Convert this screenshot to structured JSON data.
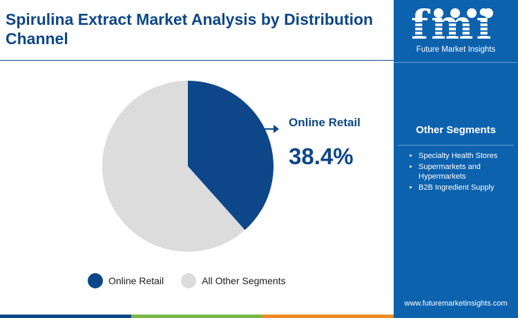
{
  "title": "Spirulina Extract Market Analysis by Distribution Channel",
  "chart_data": {
    "type": "pie",
    "categories": [
      "Online Retail",
      "All Other Segments"
    ],
    "values": [
      38.4,
      61.6
    ],
    "colors": [
      "#0d4789",
      "#dcdcdc"
    ],
    "callout": {
      "label": "Online Retail",
      "value": "38.4%"
    },
    "legend": {
      "placement": "bottom",
      "entries": [
        "Online Retail",
        "All Other Segments"
      ]
    }
  },
  "sidebar": {
    "logo_text": "fmi",
    "tagline": "Future Market Insights",
    "heading": "Other Segments",
    "segments": [
      "Specialty Health Stores",
      "Supermarkets and Hypermarkets",
      "B2B Ingredient Supply"
    ],
    "url": "www.futuremarketinsights.com"
  },
  "colors": {
    "brand": "#0d4789",
    "sidebar": "#0d62ae",
    "bottom_bar": [
      "#0d4789",
      "#7ab648",
      "#f08a24"
    ]
  }
}
